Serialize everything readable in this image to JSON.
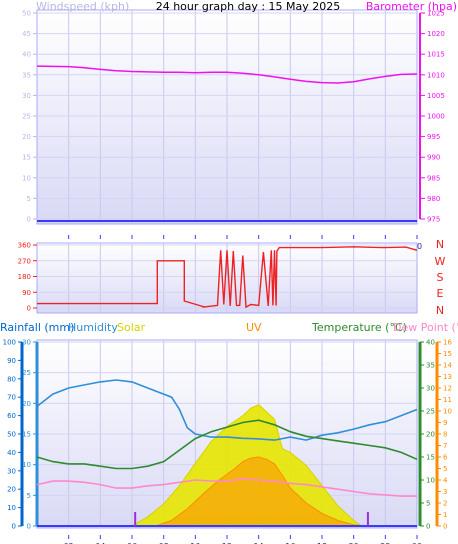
{
  "title": "24 hour graph day : 15 May 2025",
  "colors": {
    "wind": "#b7b7e8",
    "barometer": "#ee11ee",
    "direction": "#ee2222",
    "rain": "#0066cc",
    "humidity": "#2f8fd8",
    "solar": "#d4d400",
    "uv": "#ff8c00",
    "temperature": "#2e8b2e",
    "dewpoint": "#ff88cc",
    "bar": "#9b30d9",
    "axis_dark": "#3a3aff"
  },
  "x_ticks": [
    "02",
    "04",
    "06",
    "08",
    "10",
    "12",
    "14",
    "16",
    "18",
    "20",
    "22",
    "00"
  ],
  "chart_data": [
    {
      "type": "line",
      "legend_left": "Windspeed (kph)",
      "legend_right": "Barometer (hpa)",
      "y_left_ticks": [
        "0",
        "5",
        "10",
        "15",
        "20",
        "25",
        "30",
        "35",
        "40",
        "45",
        "50"
      ],
      "y_left_range": [
        0,
        50
      ],
      "y_right_ticks": [
        "975",
        "980",
        "985",
        "990",
        "995",
        "1000",
        "1005",
        "1010",
        "1015",
        "1020",
        "1025"
      ],
      "y_right_range": [
        975,
        1025
      ],
      "x_range_hours": [
        0,
        24
      ],
      "series": [
        {
          "name": "Barometer",
          "axis": "right",
          "x": [
            0,
            2,
            3,
            4,
            5,
            6,
            7,
            8,
            9,
            10,
            11,
            12,
            13,
            14,
            15,
            16,
            17,
            18,
            19,
            20,
            21,
            22,
            23,
            24
          ],
          "y": [
            1012.1,
            1012.0,
            1011.7,
            1011.3,
            1011.0,
            1010.8,
            1010.7,
            1010.6,
            1010.6,
            1010.5,
            1010.6,
            1010.6,
            1010.4,
            1010.0,
            1009.5,
            1008.9,
            1008.4,
            1008.1,
            1008.0,
            1008.3,
            1009.0,
            1009.6,
            1010.1,
            1010.2
          ]
        },
        {
          "name": "Windspeed",
          "axis": "left",
          "x": [
            0,
            24
          ],
          "y": [
            0,
            0
          ]
        }
      ]
    },
    {
      "type": "line",
      "y_ticks": [
        "0",
        "90",
        "180",
        "270",
        "360"
      ],
      "y_range": [
        0,
        360
      ],
      "direction_labels": [
        "N",
        "W",
        "S",
        "E",
        "N"
      ],
      "series": [
        {
          "name": "Wind direction",
          "x": [
            0,
            7.6,
            7.6,
            9.3,
            9.3,
            10.5,
            10.5,
            11.4,
            11.6,
            11.8,
            12.0,
            12.2,
            12.4,
            12.6,
            12.8,
            13.0,
            13.2,
            13.5,
            14.0,
            14.3,
            14.6,
            14.8,
            14.9,
            15.0,
            15.1,
            15.15,
            15.3,
            16,
            18,
            20,
            22,
            23.3,
            24
          ],
          "y": [
            25,
            25,
            270,
            270,
            40,
            8,
            5,
            15,
            330,
            20,
            330,
            12,
            325,
            15,
            15,
            300,
            5,
            20,
            15,
            320,
            12,
            330,
            15,
            330,
            14,
            325,
            345,
            345,
            345,
            350,
            345,
            348,
            330
          ]
        }
      ]
    },
    {
      "type": "area",
      "legends": [
        "Rainfall (mm)",
        "Humidity",
        "Solar",
        "UV",
        "Temperature (°C)",
        "Dew Point (°C)"
      ],
      "y_rain_ticks": [
        "0",
        "10",
        "20",
        "30",
        "40",
        "50",
        "60",
        "70",
        "80",
        "90",
        "100"
      ],
      "y_rain_range": [
        0,
        100
      ],
      "y_hum_ticks": [
        "0",
        "5",
        "10",
        "15",
        "20",
        "25",
        "30"
      ],
      "y_hum_range": [
        0,
        30
      ],
      "y_temp_ticks": [
        "0",
        "5",
        "10",
        "15",
        "20",
        "25",
        "30",
        "35",
        "40"
      ],
      "y_temp_range": [
        0,
        40
      ],
      "y_dew_ticks": [
        "0",
        "1",
        "2",
        "3",
        "4",
        "5",
        "6",
        "7",
        "8",
        "9",
        "10",
        "11",
        "12",
        "13",
        "14",
        "15",
        "16"
      ],
      "y_dew_range": [
        0,
        16
      ],
      "series": [
        {
          "name": "Humidity",
          "axis": "humidity",
          "x": [
            0,
            0.5,
            1,
            2,
            3,
            4,
            5,
            6,
            7,
            7.5,
            8,
            8.5,
            9,
            9.5,
            10,
            11,
            12,
            13,
            14,
            15,
            16,
            17,
            18,
            19,
            20,
            21,
            22,
            23,
            24
          ],
          "y": [
            19.5,
            20.5,
            21.5,
            22.5,
            23,
            23.5,
            23.8,
            23.5,
            22.5,
            22,
            21.5,
            21,
            19,
            16,
            15,
            14.5,
            14.5,
            14.3,
            14.2,
            14,
            14.5,
            14,
            14.8,
            15.2,
            15.8,
            16.5,
            17,
            18,
            19
          ]
        },
        {
          "name": "Temperature",
          "axis": "temperature",
          "x": [
            0,
            1,
            2,
            3,
            4,
            5,
            6,
            7,
            8,
            9,
            10,
            11,
            12,
            13,
            14,
            15,
            16,
            17,
            18,
            19,
            20,
            21,
            22,
            23,
            24
          ],
          "y": [
            15,
            14,
            13.5,
            13.5,
            13,
            12.5,
            12.5,
            13,
            14,
            16.5,
            19,
            20.5,
            21.5,
            22.5,
            23,
            22,
            20.5,
            19.5,
            19,
            18.5,
            18,
            17.5,
            17,
            16,
            14.5
          ]
        },
        {
          "name": "Dew Point",
          "axis": "dewpoint",
          "x": [
            0,
            1,
            2,
            3,
            4,
            5,
            6,
            7,
            8,
            9,
            10,
            11,
            12,
            13,
            14,
            15,
            16,
            17,
            18,
            19,
            20,
            21,
            22,
            23,
            24
          ],
          "y": [
            3.6,
            3.9,
            3.9,
            3.8,
            3.6,
            3.3,
            3.3,
            3.5,
            3.6,
            3.8,
            4.0,
            3.9,
            3.9,
            4.1,
            4.0,
            3.9,
            3.7,
            3.6,
            3.4,
            3.2,
            3.0,
            2.8,
            2.7,
            2.6,
            2.6
          ]
        },
        {
          "name": "Solar",
          "axis": "rain_scale_percent",
          "x": [
            6,
            7,
            8,
            9,
            10,
            11,
            12,
            13,
            13.5,
            14,
            14.5,
            15,
            15.5,
            16,
            17,
            18,
            19,
            20,
            20.5,
            21
          ],
          "y": [
            0,
            5,
            12,
            22,
            34,
            46,
            54,
            60,
            64,
            66,
            62,
            58,
            42,
            40,
            33,
            22,
            11,
            3,
            0,
            0
          ]
        },
        {
          "name": "UV",
          "axis": "dewpoint",
          "x": [
            7.5,
            8.5,
            9.5,
            10.5,
            11.5,
            12.5,
            13,
            13.5,
            14,
            14.5,
            15,
            15.5,
            16,
            17,
            18,
            19,
            20,
            21
          ],
          "y": [
            0,
            0.5,
            1.5,
            2.8,
            4.0,
            5.0,
            5.6,
            5.9,
            6.0,
            5.8,
            5.4,
            4.4,
            3.3,
            2.0,
            1.1,
            0.5,
            0.1,
            0
          ]
        },
        {
          "name": "Rainfall",
          "axis": "rain",
          "x": [
            0,
            24
          ],
          "y": [
            0,
            0
          ]
        }
      ],
      "event_marks_hours": [
        6.2,
        20.9
      ]
    }
  ]
}
